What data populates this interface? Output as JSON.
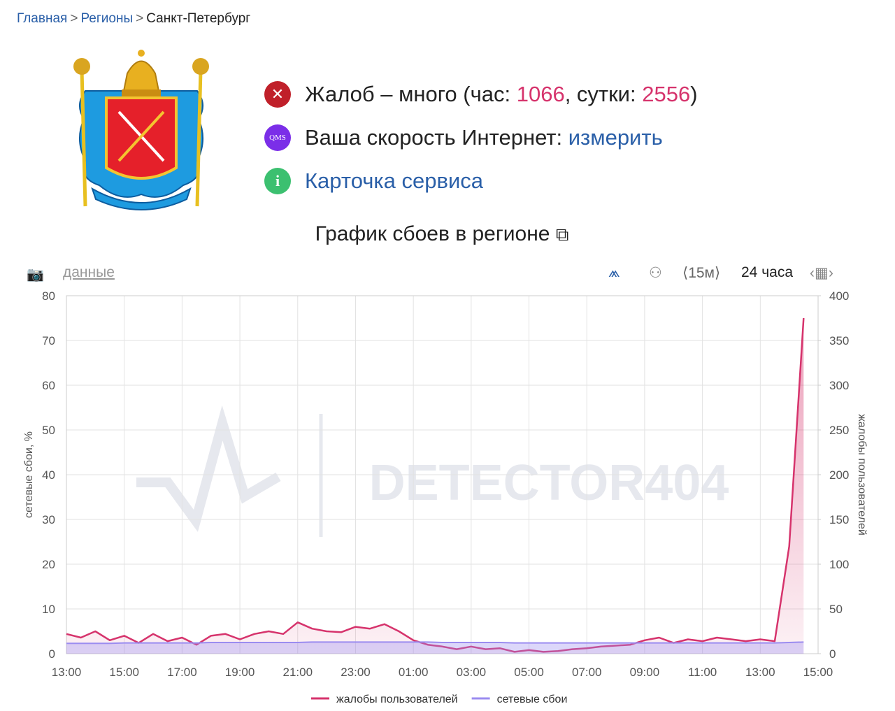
{
  "breadcrumb": [
    "Главная",
    "Регионы",
    "Санкт-Петербург"
  ],
  "info": {
    "complaints_prefix": "Жалоб – много (час: ",
    "hour": "1066",
    "complaints_mid": ", сутки: ",
    "day": "2556",
    "complaints_suffix": ")",
    "speed_label": "Ваша скорость Интернет: ",
    "speed_link": "измерить",
    "qms": "QMS",
    "card": "Карточка сервиса"
  },
  "chart_header": "График сбоев в регионе",
  "toolbar": {
    "data": "данные",
    "interval": "⟨15м⟩",
    "range": "24 часа"
  },
  "watermark": "DETECTOR404",
  "chart_data": {
    "type": "line",
    "categories": [
      "13:00",
      null,
      null,
      null,
      "15:00",
      null,
      null,
      null,
      "17:00",
      null,
      null,
      null,
      "19:00",
      null,
      null,
      null,
      "21:00",
      null,
      null,
      null,
      "23:00",
      null,
      null,
      null,
      "01:00",
      null,
      null,
      null,
      "03:00",
      null,
      null,
      null,
      "05:00",
      null,
      null,
      null,
      "07:00",
      null,
      null,
      null,
      "09:00",
      null,
      null,
      null,
      "11:00",
      null,
      null,
      null,
      "13:00",
      null,
      null,
      null,
      "15:00"
    ],
    "ylabel": "сетевые сбои, %",
    "y2label": "жалобы пользователей",
    "ylim": [
      0,
      80
    ],
    "yticks": [
      0,
      10,
      20,
      30,
      40,
      50,
      60,
      70,
      80
    ],
    "y2lim": [
      0,
      400
    ],
    "y2ticks": [
      0,
      50,
      100,
      150,
      200,
      250,
      300,
      350,
      400
    ],
    "grid": true,
    "legend": "bottom",
    "series": [
      {
        "name": "жалобы пользователей",
        "color": "#d6336c",
        "axis": "y2",
        "values": [
          22,
          18,
          25,
          15,
          20,
          12,
          22,
          14,
          18,
          10,
          20,
          22,
          16,
          22,
          25,
          22,
          35,
          28,
          25,
          24,
          30,
          28,
          33,
          25,
          15,
          10,
          8,
          5,
          8,
          5,
          6,
          2,
          4,
          2,
          3,
          5,
          6,
          8,
          9,
          10,
          15,
          18,
          12,
          16,
          14,
          18,
          16,
          14,
          16,
          14,
          120,
          375,
          null
        ]
      },
      {
        "name": "сетевые сбои",
        "color": "#9b8cf0",
        "values": [
          2.3,
          2.3,
          2.3,
          2.3,
          2.4,
          2.4,
          2.4,
          2.4,
          2.4,
          2.4,
          2.5,
          2.5,
          2.5,
          2.5,
          2.5,
          2.5,
          2.5,
          2.6,
          2.6,
          2.6,
          2.6,
          2.6,
          2.6,
          2.6,
          2.6,
          2.6,
          2.5,
          2.5,
          2.5,
          2.5,
          2.5,
          2.4,
          2.4,
          2.4,
          2.4,
          2.4,
          2.4,
          2.4,
          2.4,
          2.4,
          2.4,
          2.4,
          2.4,
          2.4,
          2.4,
          2.4,
          2.4,
          2.4,
          2.4,
          2.4,
          2.5,
          2.6,
          null
        ]
      }
    ]
  }
}
